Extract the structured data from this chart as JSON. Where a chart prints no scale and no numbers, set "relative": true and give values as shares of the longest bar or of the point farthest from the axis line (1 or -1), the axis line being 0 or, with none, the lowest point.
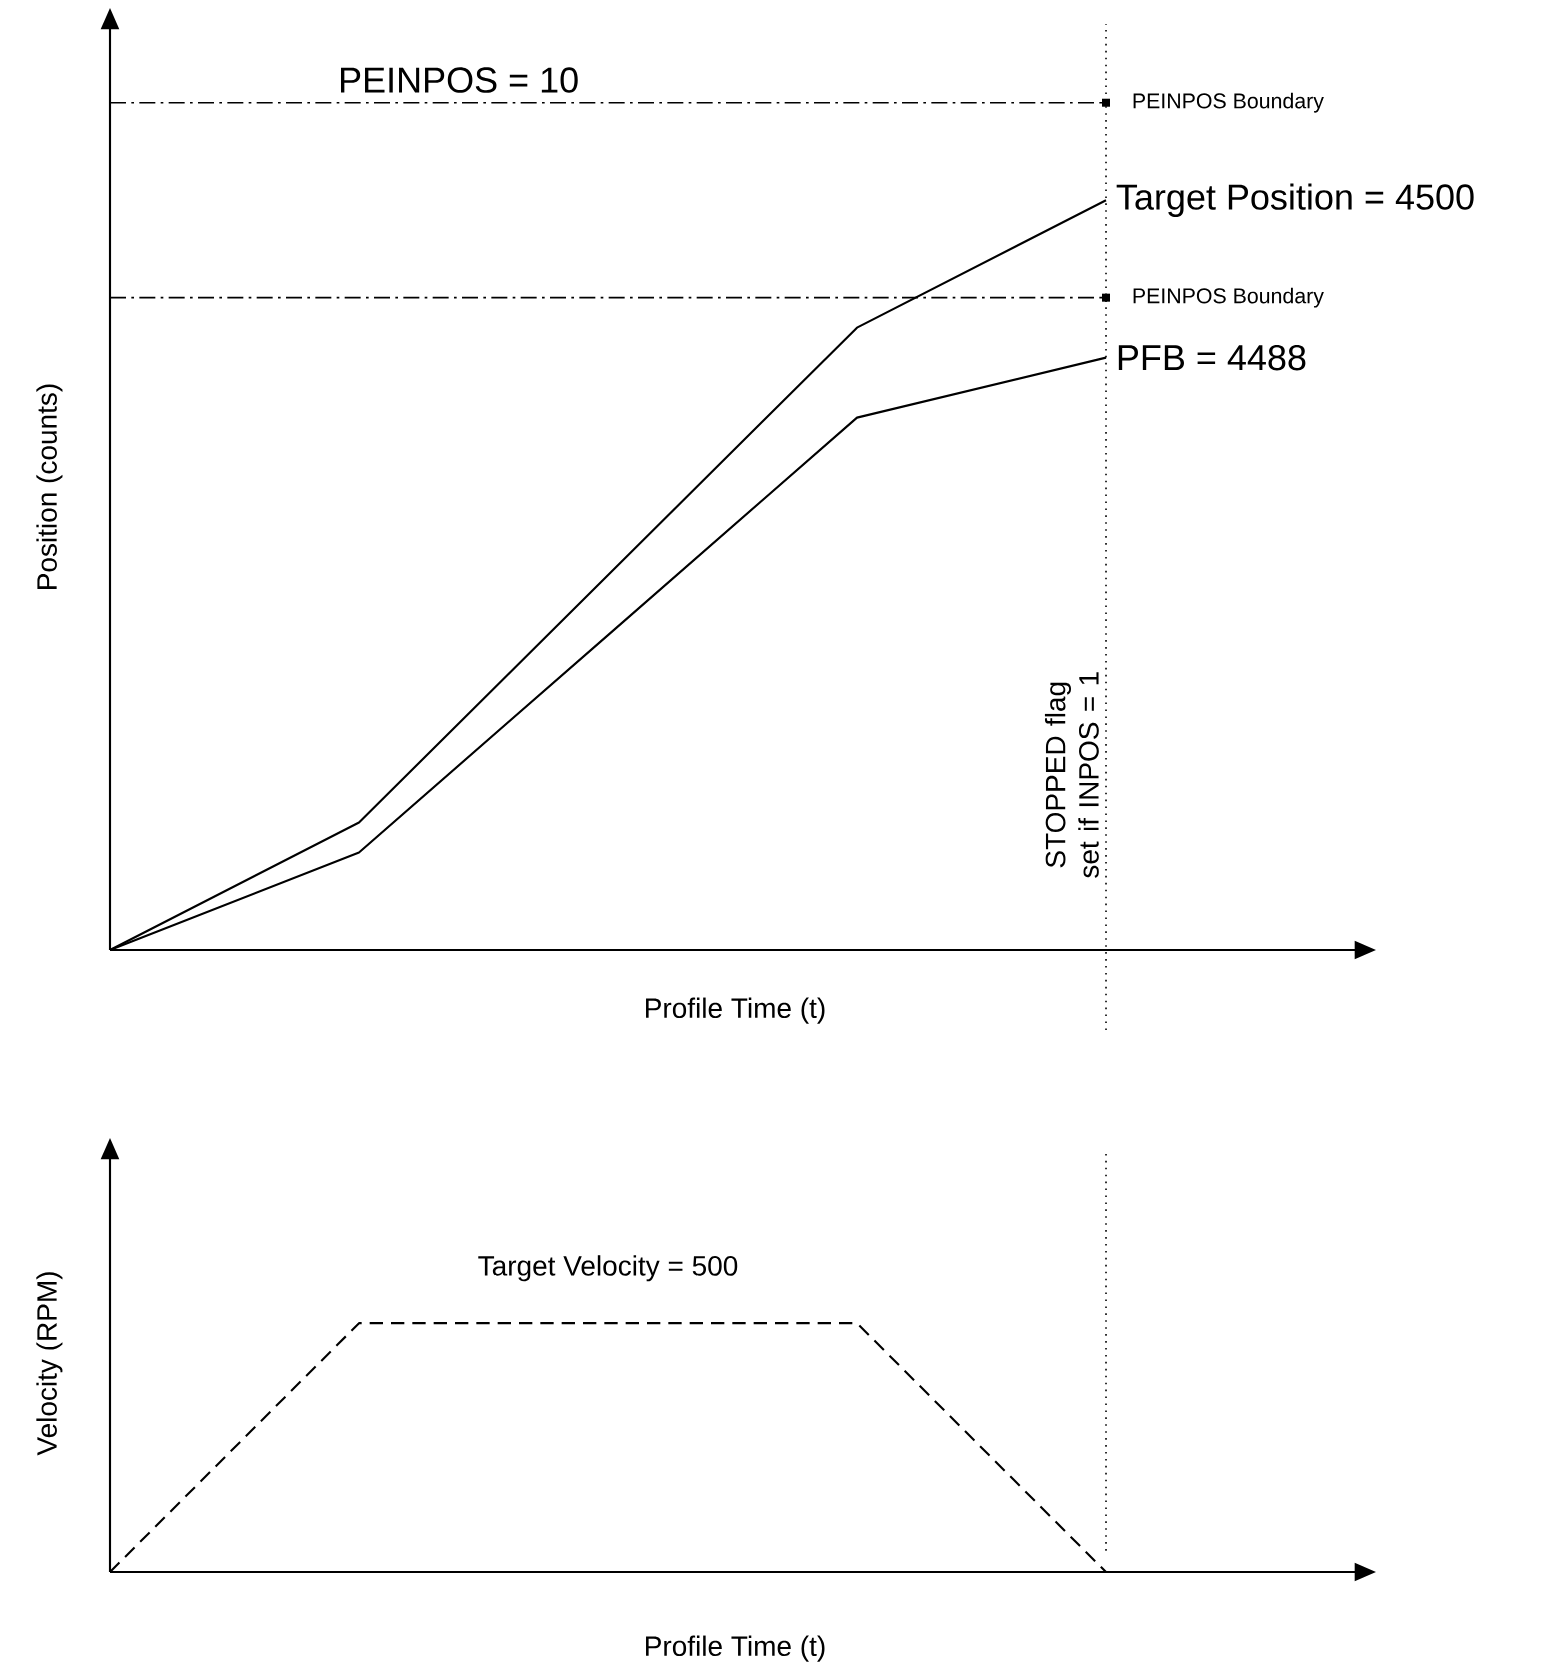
{
  "chart_data": [
    {
      "type": "line",
      "relative": true,
      "xlabel": "Profile Time (t)",
      "ylabel": "Position (counts)",
      "categories": [
        null,
        null,
        null,
        null,
        null
      ],
      "line_style": "solid",
      "series": [
        {
          "name": "Target Position = 4500",
          "color": "#000000",
          "values": [
            0,
            0.17,
            0.5,
            0.83,
            1
          ]
        },
        {
          "name": "PFB = 4488",
          "color": "#000000",
          "values": [
            0,
            0.13,
            0.42,
            0.71,
            0.79
          ]
        }
      ],
      "ref_lines": [
        {
          "axis": "y",
          "value": 1.13,
          "label": "PEINPOS Boundary",
          "line_style": "dashdot"
        },
        {
          "axis": "y",
          "value": 0.87,
          "label": "PEINPOS Boundary",
          "line_style": "dashdot"
        }
      ],
      "annotations": [
        "PEINPOS = 10",
        "STOPPED flag set if INPOS = 1"
      ]
    },
    {
      "type": "line",
      "relative": true,
      "xlabel": "Profile Time (t)",
      "ylabel": "Velocity (RPM)",
      "categories": [
        null,
        null,
        null,
        null,
        null
      ],
      "line_style": "dashed",
      "series": [
        {
          "name": "Target Velocity = 500",
          "color": "#000000",
          "values": [
            0,
            1,
            1,
            1,
            0
          ]
        }
      ]
    }
  ]
}
